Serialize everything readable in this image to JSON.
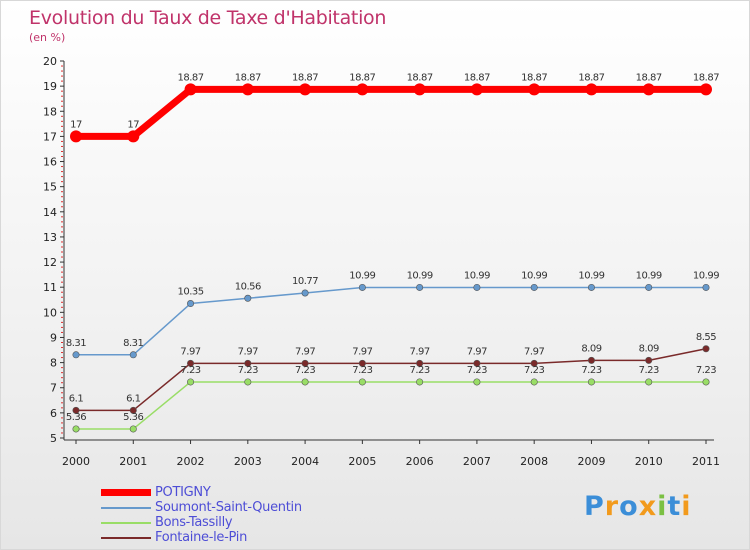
{
  "chart_data": {
    "type": "line",
    "title": "Evolution du Taux de Taxe d'Habitation",
    "ylabel": "(en %)",
    "xlabel": "",
    "ylim": [
      5,
      20
    ],
    "yticks": [
      "5",
      "6",
      "7",
      "8",
      "9",
      "10",
      "11",
      "12",
      "13",
      "14",
      "15",
      "16",
      "17",
      "18",
      "19",
      "20"
    ],
    "categories": [
      "2000",
      "2001",
      "2002",
      "2003",
      "2004",
      "2005",
      "2006",
      "2007",
      "2008",
      "2009",
      "2010",
      "2011"
    ],
    "grid": false,
    "series": [
      {
        "name": "POTIGNY",
        "color": "#ff0000",
        "values": [
          17,
          17,
          18.87,
          18.87,
          18.87,
          18.87,
          18.87,
          18.87,
          18.87,
          18.87,
          18.87,
          18.87
        ],
        "labels": [
          "17",
          "17",
          "18.87",
          "18.87",
          "18.87",
          "18.87",
          "18.87",
          "18.87",
          "18.87",
          "18.87",
          "18.87",
          "18.87"
        ]
      },
      {
        "name": "Soumont-Saint-Quentin",
        "color": "#6699cc",
        "values": [
          8.31,
          8.31,
          10.35,
          10.56,
          10.77,
          10.99,
          10.99,
          10.99,
          10.99,
          10.99,
          10.99,
          10.99
        ],
        "labels": [
          "8.31",
          "8.31",
          "10.35",
          "10.56",
          "10.77",
          "10.99",
          "10.99",
          "10.99",
          "10.99",
          "10.99",
          "10.99",
          "10.99"
        ]
      },
      {
        "name": "Bons-Tassilly",
        "color": "#99dd66",
        "values": [
          5.36,
          5.36,
          7.23,
          7.23,
          7.23,
          7.23,
          7.23,
          7.23,
          7.23,
          7.23,
          7.23,
          7.23
        ],
        "labels": [
          "5.36",
          "5.36",
          "7.23",
          "7.23",
          "7.23",
          "7.23",
          "7.23",
          "7.23",
          "7.23",
          "7.23",
          "7.23",
          "7.23"
        ]
      },
      {
        "name": "Fontaine-le-Pin",
        "color": "#7a2a2a",
        "values": [
          6.1,
          6.1,
          7.97,
          7.97,
          7.97,
          7.97,
          7.97,
          7.97,
          7.97,
          8.09,
          8.09,
          8.55
        ],
        "labels": [
          "6.1",
          "6.1",
          "7.97",
          "7.97",
          "7.97",
          "7.97",
          "7.97",
          "7.97",
          "7.97",
          "8.09",
          "8.09",
          "8.55"
        ]
      }
    ],
    "legend": "bottom-left"
  },
  "logo": {
    "text": "Proxiti",
    "letters": [
      "P",
      "r",
      "o",
      "x",
      "i",
      "t",
      "i"
    ],
    "colors": [
      "#3b8ed8",
      "#f29a1c",
      "#3b8ed8",
      "#f29a1c",
      "#7bc043",
      "#3b8ed8",
      "#f29a1c"
    ]
  }
}
